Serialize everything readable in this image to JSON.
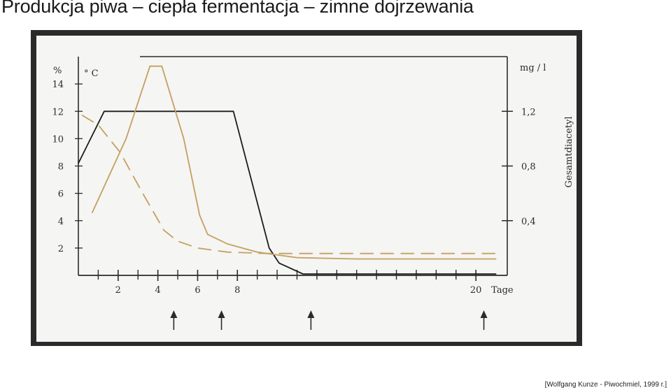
{
  "slide": {
    "title": "Produkcja piwa – ciepła fermentacja – zimne dojrzewania",
    "citation": "[Wolfgang Kunze - Piwochmiel, 1999 r.]"
  },
  "chart_data": {
    "type": "line",
    "title": "",
    "left_axis_units": [
      "%",
      "° C"
    ],
    "right_axis_unit": "mg / l",
    "right_axis_label": "Gesamtdiacetyl",
    "x_axis_label": "Tage",
    "x_ticks": [
      {
        "value": 2,
        "label": "2"
      },
      {
        "value": 4,
        "label": "4"
      },
      {
        "value": 6,
        "label": "6"
      },
      {
        "value": 8,
        "label": "8"
      },
      {
        "value": 20,
        "label": "20"
      }
    ],
    "xlim": [
      0,
      22
    ],
    "y_left_ticks": [
      {
        "value": 2,
        "label": "2"
      },
      {
        "value": 4,
        "label": "4"
      },
      {
        "value": 6,
        "label": "6"
      },
      {
        "value": 8,
        "label": "8"
      },
      {
        "value": 10,
        "label": "10"
      },
      {
        "value": 12,
        "label": "12"
      },
      {
        "value": 14,
        "label": "14"
      }
    ],
    "y_left_lim": [
      0,
      16
    ],
    "y_right_ticks": [
      {
        "value": 0.4,
        "label": "0,4"
      },
      {
        "value": 0.8,
        "label": "0,8"
      },
      {
        "value": 1.2,
        "label": "1,2"
      }
    ],
    "y_right_lim": [
      0,
      1.6
    ],
    "series": [
      {
        "color": "#1c1c1c",
        "dash": "solid",
        "axis": "left",
        "points": [
          [
            0,
            8.2
          ],
          [
            1.3,
            12
          ],
          [
            7.8,
            12
          ],
          [
            9.6,
            2
          ],
          [
            10.1,
            0.9
          ],
          [
            11.3,
            0.1
          ],
          [
            21,
            0.1
          ]
        ]
      },
      {
        "color": "#c4a060",
        "dash": "solid",
        "axis": "left",
        "points": [
          [
            0.7,
            4.6
          ],
          [
            2.4,
            10
          ],
          [
            3.6,
            15.3
          ],
          [
            4.2,
            15.3
          ],
          [
            5.3,
            10
          ],
          [
            6.1,
            4.4
          ],
          [
            6.5,
            3.0
          ],
          [
            7.5,
            2.3
          ],
          [
            9,
            1.7
          ],
          [
            11,
            1.3
          ],
          [
            14,
            1.2
          ],
          [
            18,
            1.2
          ],
          [
            21,
            1.2
          ]
        ]
      },
      {
        "color": "#c4a060",
        "dash": "dashed",
        "axis": "left",
        "points": [
          [
            0.2,
            11.7
          ],
          [
            1,
            11
          ],
          [
            2.1,
            9
          ],
          [
            3.2,
            6.1
          ],
          [
            4.3,
            3.3
          ],
          [
            5,
            2.5
          ],
          [
            6,
            2
          ],
          [
            7.5,
            1.7
          ],
          [
            9.5,
            1.6
          ],
          [
            12,
            1.6
          ],
          [
            16,
            1.6
          ],
          [
            21,
            1.6
          ]
        ]
      }
    ],
    "arrows_at_x": [
      4.8,
      7.2,
      11.7,
      20.4
    ],
    "grid": false,
    "legend": "none"
  }
}
